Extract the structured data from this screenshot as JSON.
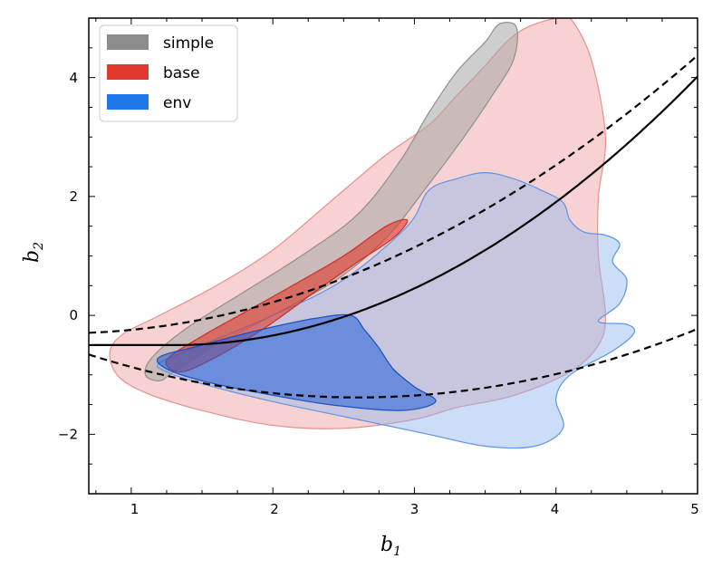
{
  "chart_data": {
    "type": "contour",
    "xlim": [
      0.7,
      5.0
    ],
    "ylim": [
      -3.0,
      5.0
    ],
    "xticks": [
      1,
      2,
      3,
      4,
      5
    ],
    "yticks": [
      -2,
      0,
      2,
      4
    ],
    "xtick_labels": [
      "1",
      "2",
      "3",
      "4",
      "5"
    ],
    "ytick_labels": [
      "−2",
      "0",
      "2",
      "4"
    ],
    "xlabel": {
      "main": "b",
      "sub": "1"
    },
    "ylabel": {
      "main": "b",
      "sub": "2"
    },
    "legend": {
      "position": "top-left",
      "entries": [
        {
          "label": "simple",
          "color": "#8c8c8c"
        },
        {
          "label": "base",
          "color": "#e0392b"
        },
        {
          "label": "env",
          "color": "#1f77e8"
        }
      ]
    },
    "contours": [
      {
        "name": "base-outer",
        "series": "base",
        "level": "outer",
        "fill": "#f2a6a6",
        "stroke": "#e8908e",
        "opacity": 0.5,
        "points": [
          [
            0.85,
            -0.6
          ],
          [
            0.95,
            -0.3
          ],
          [
            1.2,
            0.0
          ],
          [
            1.6,
            0.5
          ],
          [
            2.0,
            1.1
          ],
          [
            2.4,
            1.9
          ],
          [
            2.8,
            2.7
          ],
          [
            3.1,
            3.2
          ],
          [
            3.3,
            3.7
          ],
          [
            3.5,
            4.2
          ],
          [
            3.65,
            4.6
          ],
          [
            3.8,
            4.85
          ],
          [
            4.0,
            5.0
          ],
          [
            4.1,
            5.0
          ],
          [
            4.25,
            4.3
          ],
          [
            4.35,
            3.0
          ],
          [
            4.3,
            2.0
          ],
          [
            4.3,
            1.0
          ],
          [
            4.35,
            0.0
          ],
          [
            4.3,
            -0.5
          ],
          [
            4.1,
            -0.95
          ],
          [
            3.7,
            -1.35
          ],
          [
            3.3,
            -1.55
          ],
          [
            3.0,
            -1.75
          ],
          [
            2.5,
            -1.9
          ],
          [
            2.0,
            -1.85
          ],
          [
            1.5,
            -1.6
          ],
          [
            1.1,
            -1.3
          ],
          [
            0.9,
            -1.0
          ]
        ]
      },
      {
        "name": "simple-outer",
        "series": "simple",
        "level": "outer",
        "fill": "#a6a6a6",
        "stroke": "#8f8f8f",
        "opacity": 0.55,
        "points": [
          [
            1.1,
            -1.0
          ],
          [
            1.15,
            -0.7
          ],
          [
            1.4,
            -0.2
          ],
          [
            1.8,
            0.4
          ],
          [
            2.2,
            1.0
          ],
          [
            2.6,
            1.7
          ],
          [
            2.9,
            2.6
          ],
          [
            3.1,
            3.4
          ],
          [
            3.3,
            4.1
          ],
          [
            3.5,
            4.6
          ],
          [
            3.6,
            4.9
          ],
          [
            3.72,
            4.85
          ],
          [
            3.7,
            4.3
          ],
          [
            3.55,
            3.7
          ],
          [
            3.35,
            3.0
          ],
          [
            3.1,
            2.2
          ],
          [
            2.8,
            1.3
          ],
          [
            2.45,
            0.6
          ],
          [
            2.0,
            0.0
          ],
          [
            1.6,
            -0.5
          ],
          [
            1.3,
            -0.95
          ],
          [
            1.2,
            -1.1
          ]
        ]
      },
      {
        "name": "env-outer",
        "series": "env",
        "level": "outer",
        "fill": "#8fb6ee",
        "stroke": "#5e95e6",
        "opacity": 0.45,
        "points": [
          [
            1.2,
            -0.8
          ],
          [
            1.5,
            -0.5
          ],
          [
            2.0,
            0.0
          ],
          [
            2.5,
            0.6
          ],
          [
            2.95,
            1.5
          ],
          [
            3.1,
            2.1
          ],
          [
            3.3,
            2.3
          ],
          [
            3.5,
            2.4
          ],
          [
            3.7,
            2.3
          ],
          [
            3.9,
            2.1
          ],
          [
            4.05,
            1.9
          ],
          [
            4.1,
            1.6
          ],
          [
            4.2,
            1.4
          ],
          [
            4.35,
            1.35
          ],
          [
            4.45,
            1.2
          ],
          [
            4.4,
            0.9
          ],
          [
            4.5,
            0.6
          ],
          [
            4.45,
            0.2
          ],
          [
            4.3,
            -0.1
          ],
          [
            4.5,
            -0.15
          ],
          [
            4.55,
            -0.3
          ],
          [
            4.4,
            -0.6
          ],
          [
            4.1,
            -1.0
          ],
          [
            4.0,
            -1.4
          ],
          [
            4.05,
            -1.9
          ],
          [
            3.85,
            -2.2
          ],
          [
            3.5,
            -2.2
          ],
          [
            3.1,
            -2.0
          ],
          [
            2.6,
            -1.75
          ],
          [
            2.0,
            -1.45
          ],
          [
            1.5,
            -1.15
          ],
          [
            1.25,
            -0.95
          ]
        ]
      },
      {
        "name": "base-inner",
        "series": "base",
        "level": "inner",
        "fill": "#e0392b",
        "stroke": "#cc3022",
        "opacity": 0.6,
        "points": [
          [
            1.25,
            -0.75
          ],
          [
            1.5,
            -0.35
          ],
          [
            1.8,
            0.05
          ],
          [
            2.1,
            0.45
          ],
          [
            2.5,
            1.0
          ],
          [
            2.8,
            1.5
          ],
          [
            2.95,
            1.6
          ],
          [
            2.85,
            1.3
          ],
          [
            2.6,
            0.9
          ],
          [
            2.3,
            0.4
          ],
          [
            1.95,
            -0.2
          ],
          [
            1.6,
            -0.7
          ],
          [
            1.35,
            -0.95
          ]
        ]
      },
      {
        "name": "env-inner",
        "series": "env",
        "level": "inner",
        "fill": "#1f5fd8",
        "stroke": "#1a50c0",
        "opacity": 0.55,
        "points": [
          [
            1.2,
            -0.7
          ],
          [
            1.5,
            -0.5
          ],
          [
            1.9,
            -0.25
          ],
          [
            2.3,
            -0.05
          ],
          [
            2.55,
            0.0
          ],
          [
            2.65,
            -0.25
          ],
          [
            2.75,
            -0.55
          ],
          [
            2.85,
            -0.9
          ],
          [
            3.0,
            -1.2
          ],
          [
            3.15,
            -1.45
          ],
          [
            2.9,
            -1.6
          ],
          [
            2.4,
            -1.5
          ],
          [
            1.9,
            -1.3
          ],
          [
            1.5,
            -1.1
          ],
          [
            1.25,
            -0.9
          ]
        ]
      }
    ],
    "curves": [
      {
        "name": "center-curve",
        "style": "solid",
        "y0": -0.5,
        "coef": 0.33,
        "x0": 1.3,
        "power": 2
      },
      {
        "name": "upper-dashed-curve",
        "style": "dashed",
        "y0": -0.3,
        "a": 0.5,
        "b": 0.23,
        "x0": 0.6,
        "power": 2
      },
      {
        "name": "lower-dashed-curve",
        "style": "dashed",
        "a": 0.2,
        "x0": 2.6,
        "y0": -1.38,
        "power": 2
      }
    ]
  }
}
